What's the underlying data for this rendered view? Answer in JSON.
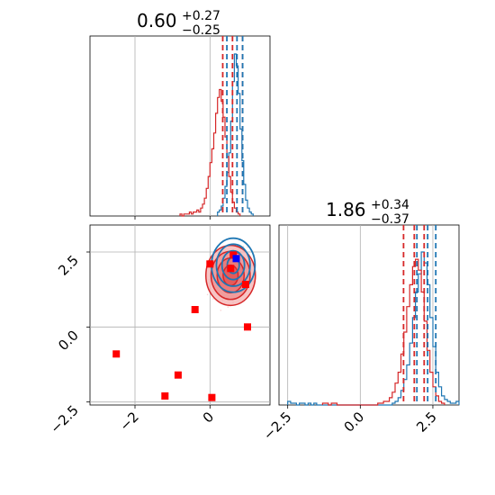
{
  "chart_data": {
    "type": "corner",
    "colors": {
      "posterior_a": "#1f77b4",
      "posterior_b": "#d62728",
      "points": "#ff0000",
      "truth": "#0000ff",
      "grid": "#b0b0b0"
    },
    "grid": true,
    "parameter_titles": [
      {
        "value": "0.60",
        "plus": "+0.27",
        "minus": "−0.25"
      },
      {
        "value": "1.86",
        "plus": "+0.34",
        "minus": "−0.37"
      }
    ],
    "x_range": [
      -3.2,
      1.6
    ],
    "y_range": [
      -2.6,
      3.4
    ],
    "x_ticks": [
      {
        "value": -2,
        "label": "−2"
      },
      {
        "value": 0,
        "label": "0"
      }
    ],
    "y_ticks": [
      {
        "value": 2.5,
        "label": "2.5"
      },
      {
        "value": 0,
        "label": "0.0"
      },
      {
        "value": -2.5,
        "label": "−2.5"
      }
    ],
    "marginal_y_ticks": [
      {
        "value": -2.5,
        "label": "−2.5"
      },
      {
        "value": 0,
        "label": "0.0"
      },
      {
        "value": 2.5,
        "label": "2.5"
      }
    ],
    "marginal_x_quantiles": {
      "blue": [
        0.45,
        0.72,
        0.87
      ],
      "red": [
        0.34,
        0.6,
        0.87
      ]
    },
    "marginal_y_quantiles": {
      "blue": [
        1.95,
        2.32,
        2.6
      ],
      "red": [
        1.49,
        1.86,
        2.2
      ]
    },
    "histogram_x_blue": {
      "start": 0.2,
      "step": 0.05,
      "counts": [
        2,
        3,
        5,
        9,
        15,
        22,
        32,
        48,
        68,
        82,
        76,
        62,
        44,
        28,
        16,
        8,
        4,
        2,
        1
      ]
    },
    "histogram_x_red": {
      "start": -0.8,
      "step": 0.05,
      "counts": [
        1,
        0,
        1,
        1,
        1,
        2,
        1,
        2,
        2,
        3,
        2,
        4,
        6,
        9,
        14,
        20,
        27,
        34,
        42,
        52,
        60,
        64,
        58,
        50,
        40,
        30,
        20,
        12,
        7,
        4,
        2,
        1
      ]
    },
    "histogram_y_blue": {
      "start": -2.5,
      "step": 0.1,
      "counts": [
        2,
        1,
        1,
        0,
        1,
        1,
        0,
        1,
        0,
        1,
        0,
        0,
        0,
        0,
        0,
        0,
        0,
        0,
        0,
        0,
        0,
        0,
        0,
        0,
        0,
        0,
        0,
        0,
        0,
        0,
        0,
        0,
        0,
        0,
        0,
        0,
        1,
        2,
        4,
        8,
        14,
        22,
        34,
        48,
        62,
        72,
        84,
        78,
        66,
        48,
        32,
        18,
        10,
        5,
        3,
        2,
        1,
        1,
        2
      ]
    },
    "histogram_y_red": {
      "start": -1.3,
      "step": 0.1,
      "counts": [
        1,
        1,
        0,
        1,
        1,
        0,
        0,
        0,
        0,
        0,
        0,
        0,
        0,
        0,
        0,
        0,
        0,
        0,
        0,
        1,
        1,
        2,
        2,
        4,
        7,
        12,
        18,
        28,
        40,
        54,
        66,
        76,
        80,
        74,
        62,
        46,
        30,
        18,
        10,
        5,
        2,
        1
      ]
    },
    "contours_blue": [
      {
        "cx": 0.62,
        "cy": 2.06,
        "rx": 0.58,
        "ry": 0.9
      },
      {
        "cx": 0.62,
        "cy": 2.06,
        "rx": 0.45,
        "ry": 0.7
      },
      {
        "cx": 0.62,
        "cy": 2.06,
        "rx": 0.3,
        "ry": 0.48
      },
      {
        "cx": 0.62,
        "cy": 2.06,
        "rx": 0.16,
        "ry": 0.27
      }
    ],
    "contours_red": [
      {
        "cx": 0.55,
        "cy": 1.72,
        "rx": 0.66,
        "ry": 1.0
      },
      {
        "cx": 0.55,
        "cy": 1.72,
        "rx": 0.52,
        "ry": 0.8
      },
      {
        "cx": 0.55,
        "cy": 1.72,
        "rx": 0.36,
        "ry": 0.58
      },
      {
        "cx": 0.55,
        "cy": 1.72,
        "rx": 0.2,
        "ry": 0.34
      }
    ],
    "points": [
      {
        "x": -2.5,
        "y": -0.9
      },
      {
        "x": -1.2,
        "y": -2.3
      },
      {
        "x": -0.85,
        "y": -1.6
      },
      {
        "x": -0.4,
        "y": 0.58
      },
      {
        "x": 0.05,
        "y": -2.35
      },
      {
        "x": 1.0,
        "y": 0.0
      },
      {
        "x": 0.0,
        "y": 2.1
      },
      {
        "x": 0.55,
        "y": 1.95
      },
      {
        "x": 0.95,
        "y": 1.42
      },
      {
        "x": 0.62,
        "y": 2.4
      }
    ],
    "truth_point": {
      "x": 0.7,
      "y": 2.28
    }
  }
}
